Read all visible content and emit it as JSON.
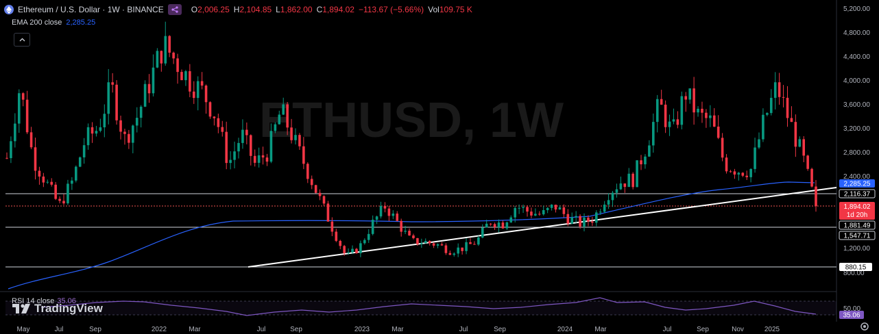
{
  "legend": {
    "symbol": "Ethereum / U.S. Dollar · 1W · BINANCE",
    "open_label": "O",
    "open": "2,006.25",
    "high_label": "H",
    "high": "2,104.85",
    "low_label": "L",
    "low": "1,862.00",
    "close_label": "C",
    "close": "1,894.02",
    "change": "−113.67 (−5.66%)",
    "vol_label": "Vol",
    "vol": "109.75 K"
  },
  "ema": {
    "label": "EMA 200 close",
    "value": "2,285.25"
  },
  "rsi": {
    "label": "RSI 14 close",
    "value": "35.06"
  },
  "watermark": {
    "symbol": "ETHUSD, 1W"
  },
  "logo": "TradingView",
  "colors": {
    "up": "#089981",
    "down": "#f23645",
    "ema": "#2962ff",
    "rsi": "#7e57c2",
    "accent": "#2962ff"
  },
  "icons": {
    "symbol_icon": "ethereum-logo-icon",
    "signal": "share-nodes-icon",
    "collapse": "chevron-up-icon",
    "settings": "gear-icon"
  },
  "chart_data": {
    "type": "candlestick",
    "y_axis_ticks": [
      "5,200.00",
      "4,800.00",
      "4,400.00",
      "4,000.00",
      "3,600.00",
      "3,200.00",
      "2,800.00",
      "2,400.00",
      "1,200.00",
      "800.00"
    ],
    "x_axis_ticks": [
      "May",
      "Jul",
      "Sep",
      "2022",
      "Mar",
      "Jul",
      "Sep",
      "2023",
      "Mar",
      "Jul",
      "Sep",
      "2024",
      "Mar",
      "Jul",
      "Sep",
      "Nov",
      "2025"
    ],
    "rsi_ticks": [
      "50.00"
    ],
    "price_labels": [
      {
        "value": "2,285.25",
        "role": "ema"
      },
      {
        "value": "2,116.37",
        "role": "line"
      },
      {
        "value": "1,894.02",
        "role": "last"
      },
      {
        "value": "1d 20h",
        "role": "countdown"
      },
      {
        "value": "1,881.49",
        "role": "line"
      },
      {
        "value": "1,547.71",
        "role": "line"
      },
      {
        "value": "880.15",
        "role": "line"
      }
    ],
    "horizontal_levels": [
      2116.37,
      1881.49,
      1547.71,
      880.15
    ],
    "trendline": [
      {
        "date": "2022-06",
        "price": 880
      },
      {
        "date": "2025-03",
        "price": 2180
      }
    ],
    "weekly_close_path": [
      [
        "2021-05",
        2700
      ],
      [
        "2021-05",
        3900
      ],
      [
        "2021-06",
        2700
      ],
      [
        "2021-06",
        2300
      ],
      [
        "2021-07",
        1900
      ],
      [
        "2021-07",
        2300
      ],
      [
        "2021-08",
        3000
      ],
      [
        "2021-08",
        3200
      ],
      [
        "2021-09",
        3900
      ],
      [
        "2021-09",
        3000
      ],
      [
        "2021-10",
        3400
      ],
      [
        "2021-10",
        4000
      ],
      [
        "2021-11",
        4600
      ],
      [
        "2021-11",
        4300
      ],
      [
        "2021-12",
        4000
      ],
      [
        "2021-12",
        3800
      ],
      [
        "2022-01",
        3400
      ],
      [
        "2022-01",
        2600
      ],
      [
        "2022-02",
        3100
      ],
      [
        "2022-02",
        2600
      ],
      [
        "2022-03",
        2800
      ],
      [
        "2022-04",
        3500
      ],
      [
        "2022-04",
        3000
      ],
      [
        "2022-05",
        2500
      ],
      [
        "2022-05",
        2000
      ],
      [
        "2022-06",
        1500
      ],
      [
        "2022-06",
        1050
      ],
      [
        "2022-07",
        1200
      ],
      [
        "2022-07",
        1600
      ],
      [
        "2022-08",
        1900
      ],
      [
        "2022-08",
        1600
      ],
      [
        "2022-09",
        1300
      ],
      [
        "2022-10",
        1300
      ],
      [
        "2022-11",
        1250
      ],
      [
        "2022-11",
        1150
      ],
      [
        "2022-12",
        1200
      ],
      [
        "2023-01",
        1300
      ],
      [
        "2023-02",
        1650
      ],
      [
        "2023-03",
        1600
      ],
      [
        "2023-04",
        1900
      ],
      [
        "2023-05",
        1800
      ],
      [
        "2023-06",
        1750
      ],
      [
        "2023-07",
        1900
      ],
      [
        "2023-08",
        1700
      ],
      [
        "2023-09",
        1600
      ],
      [
        "2023-10",
        1700
      ],
      [
        "2023-11",
        2100
      ],
      [
        "2023-12",
        2300
      ],
      [
        "2024-01",
        2350
      ],
      [
        "2024-02",
        2900
      ],
      [
        "2024-03",
        3600
      ],
      [
        "2024-04",
        3100
      ],
      [
        "2024-05",
        3800
      ],
      [
        "2024-06",
        3400
      ],
      [
        "2024-07",
        3300
      ],
      [
        "2024-08",
        2600
      ],
      [
        "2024-09",
        2500
      ],
      [
        "2024-10",
        2500
      ],
      [
        "2024-11",
        3300
      ],
      [
        "2024-12",
        3900
      ],
      [
        "2025-01",
        3300
      ],
      [
        "2025-02",
        2700
      ],
      [
        "2025-03",
        1894
      ]
    ]
  }
}
